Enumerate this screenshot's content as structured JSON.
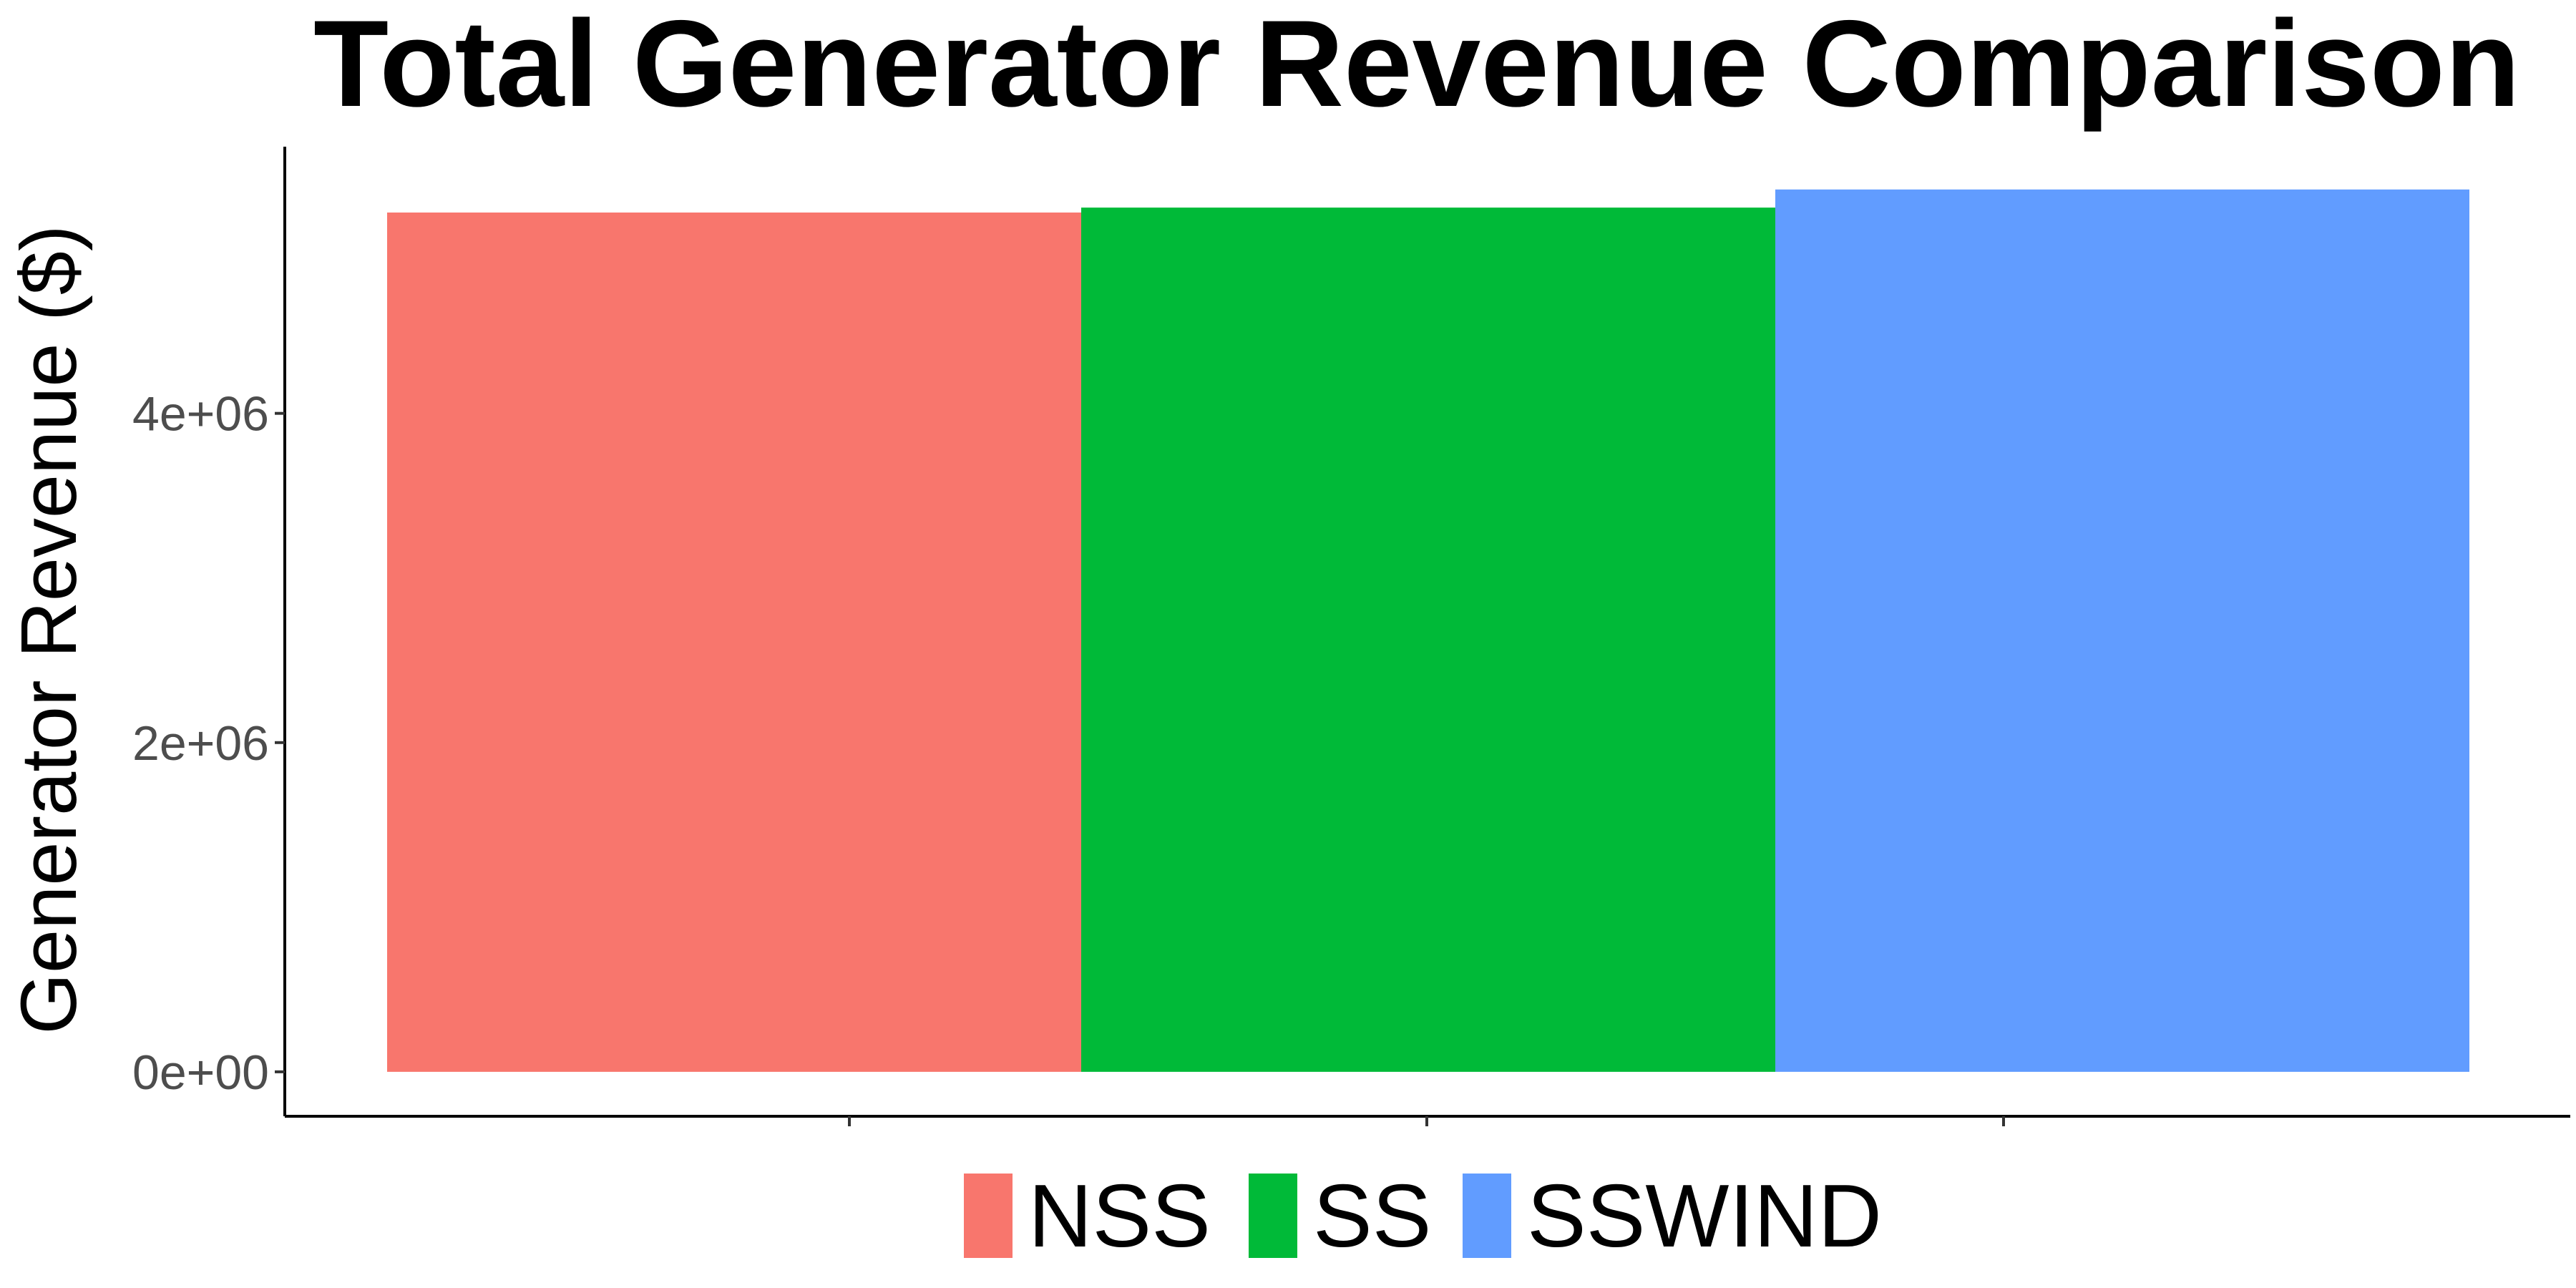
{
  "chart_data": {
    "type": "bar",
    "title": "Total Generator  Revenue  Comparison",
    "xlabel": "",
    "ylabel": "Generator  Revenue  ($)",
    "categories": [
      "NSS",
      "SS",
      "SSWIND"
    ],
    "values": [
      5220000,
      5250000,
      5360000
    ],
    "colors": [
      "#F8766D",
      "#00BA38",
      "#619CFF"
    ],
    "ylim": [
      -270000,
      5620000
    ],
    "yticks": [
      0,
      2000000,
      4000000
    ],
    "ytick_labels": [
      "0e+00",
      "2e+06",
      "4e+06"
    ],
    "xticks_count": 3,
    "grid": false,
    "legend": {
      "position": "bottom",
      "entries": [
        "NSS",
        "SS",
        "SSWIND"
      ]
    }
  }
}
